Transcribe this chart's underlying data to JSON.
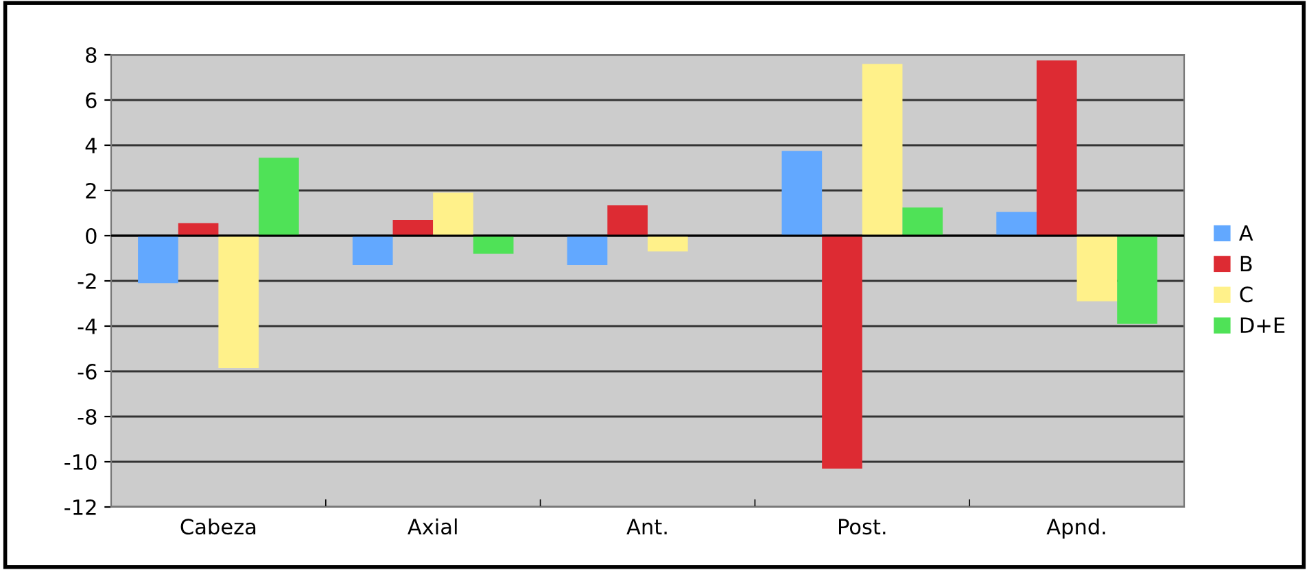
{
  "chart_data": {
    "type": "bar",
    "categories": [
      "Cabeza",
      "Axial",
      "Ant.",
      "Post.",
      "Apnd."
    ],
    "series": [
      {
        "name": "A",
        "color": "#62a8ff",
        "values": [
          -2.1,
          -1.3,
          -1.3,
          3.75,
          1.05
        ]
      },
      {
        "name": "B",
        "color": "#dd2b33",
        "values": [
          0.55,
          0.7,
          1.35,
          -10.3,
          7.75
        ]
      },
      {
        "name": "C",
        "color": "#fff18a",
        "values": [
          -5.85,
          1.9,
          -0.7,
          7.6,
          -2.9
        ]
      },
      {
        "name": "D+E",
        "color": "#4fe257",
        "values": [
          3.45,
          -0.8,
          0,
          1.25,
          -3.9
        ]
      }
    ],
    "ylim": [
      -12,
      8
    ],
    "yticks": [
      -12,
      -10,
      -8,
      -6,
      -4,
      -2,
      0,
      2,
      4,
      6,
      8
    ],
    "grid": "y",
    "legend": "right"
  }
}
